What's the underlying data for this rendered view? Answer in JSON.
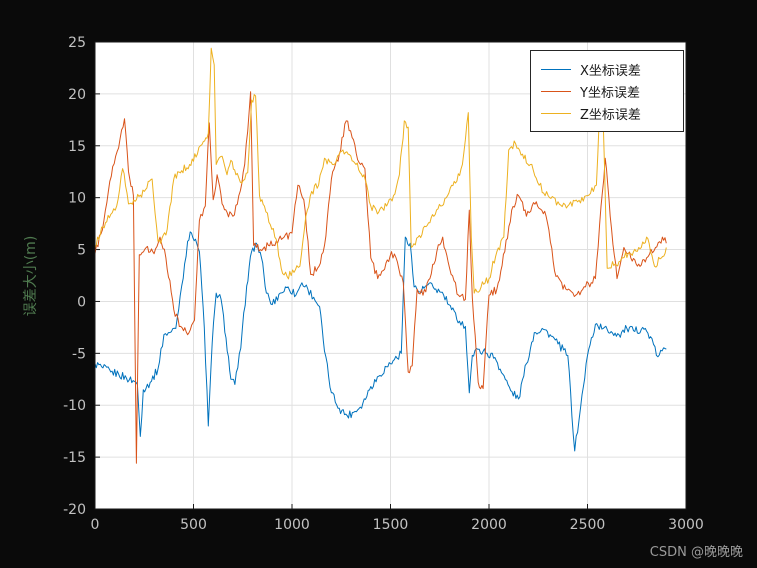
{
  "watermark": "CSDN @晚晚晚",
  "colors": {
    "figure_bg": "#0a0a0a",
    "plot_bg": "#ffffff",
    "grid": "#e0e0e0",
    "axis": "#1a1a1a",
    "tick_label": "#c2c2c2",
    "ylabel": "#4f7a4f",
    "watermark": "#9a9a9a"
  },
  "chart_data": {
    "type": "line",
    "title": "",
    "xlabel": "",
    "ylabel": "误差大小(m)",
    "xlim": [
      0,
      3000
    ],
    "ylim": [
      -20,
      25
    ],
    "xticks": [
      0,
      500,
      1000,
      1500,
      2000,
      2500,
      3000
    ],
    "yticks": [
      -20,
      -15,
      -10,
      -5,
      0,
      5,
      10,
      15,
      20,
      25
    ],
    "grid": true,
    "legend_position": "top-right",
    "noise_amplitude": 0.4,
    "series": [
      {
        "name": "X坐标误差",
        "color": "#0072BD",
        "points": [
          [
            0,
            -6
          ],
          [
            40,
            -6.4
          ],
          [
            80,
            -6.8
          ],
          [
            120,
            -7
          ],
          [
            160,
            -7.4
          ],
          [
            200,
            -7.7
          ],
          [
            215,
            -8
          ],
          [
            230,
            -13
          ],
          [
            245,
            -8.5
          ],
          [
            280,
            -7.8
          ],
          [
            320,
            -6.5
          ],
          [
            350,
            -3.2
          ],
          [
            380,
            -3
          ],
          [
            410,
            -2.6
          ],
          [
            440,
            1.5
          ],
          [
            470,
            5.8
          ],
          [
            490,
            6.6
          ],
          [
            510,
            6
          ],
          [
            530,
            4.8
          ],
          [
            555,
            -2.5
          ],
          [
            575,
            -12
          ],
          [
            595,
            -4
          ],
          [
            615,
            0.8
          ],
          [
            640,
            0.2
          ],
          [
            665,
            -3.5
          ],
          [
            690,
            -7.5
          ],
          [
            710,
            -8
          ],
          [
            740,
            -4.5
          ],
          [
            770,
            1.5
          ],
          [
            795,
            4.8
          ],
          [
            820,
            5.6
          ],
          [
            845,
            4.2
          ],
          [
            870,
            0.8
          ],
          [
            900,
            -0.3
          ],
          [
            940,
            0.8
          ],
          [
            980,
            1.4
          ],
          [
            1020,
            0.6
          ],
          [
            1050,
            1.8
          ],
          [
            1080,
            1.2
          ],
          [
            1110,
            0.4
          ],
          [
            1140,
            -0.5
          ],
          [
            1165,
            -4.8
          ],
          [
            1200,
            -8.8
          ],
          [
            1240,
            -10.3
          ],
          [
            1280,
            -11
          ],
          [
            1320,
            -10.6
          ],
          [
            1360,
            -9.8
          ],
          [
            1400,
            -8.2
          ],
          [
            1440,
            -7.2
          ],
          [
            1480,
            -6.3
          ],
          [
            1520,
            -5.6
          ],
          [
            1555,
            -5
          ],
          [
            1575,
            6.2
          ],
          [
            1600,
            5.6
          ],
          [
            1620,
            1.4
          ],
          [
            1650,
            0.9
          ],
          [
            1690,
            1.6
          ],
          [
            1730,
            1.2
          ],
          [
            1770,
            0.6
          ],
          [
            1810,
            -0.8
          ],
          [
            1850,
            -1.9
          ],
          [
            1880,
            -2.4
          ],
          [
            1900,
            -8.8
          ],
          [
            1915,
            -5.2
          ],
          [
            1950,
            -4.6
          ],
          [
            1990,
            -5
          ],
          [
            2030,
            -5.4
          ],
          [
            2070,
            -7
          ],
          [
            2110,
            -8.6
          ],
          [
            2150,
            -9.4
          ],
          [
            2190,
            -6
          ],
          [
            2230,
            -3
          ],
          [
            2270,
            -2.6
          ],
          [
            2310,
            -3.2
          ],
          [
            2350,
            -4.1
          ],
          [
            2400,
            -5.2
          ],
          [
            2435,
            -14.4
          ],
          [
            2465,
            -10.2
          ],
          [
            2500,
            -5.2
          ],
          [
            2540,
            -2.2
          ],
          [
            2580,
            -2.6
          ],
          [
            2620,
            -2.9
          ],
          [
            2660,
            -3.2
          ],
          [
            2700,
            -2.6
          ],
          [
            2740,
            -2.9
          ],
          [
            2780,
            -2.5
          ],
          [
            2820,
            -3.4
          ],
          [
            2850,
            -5.2
          ],
          [
            2900,
            -4.6
          ]
        ]
      },
      {
        "name": "Y坐标误差",
        "color": "#D95319",
        "points": [
          [
            0,
            4.6
          ],
          [
            30,
            6.5
          ],
          [
            60,
            9.5
          ],
          [
            90,
            13
          ],
          [
            120,
            14.8
          ],
          [
            150,
            17.6
          ],
          [
            170,
            12.5
          ],
          [
            195,
            10.2
          ],
          [
            210,
            -15.6
          ],
          [
            225,
            4.5
          ],
          [
            260,
            5.2
          ],
          [
            300,
            4.6
          ],
          [
            330,
            6.2
          ],
          [
            360,
            4.2
          ],
          [
            400,
            -0.8
          ],
          [
            435,
            -2.4
          ],
          [
            470,
            -3.2
          ],
          [
            505,
            -1.8
          ],
          [
            530,
            7.8
          ],
          [
            560,
            9.2
          ],
          [
            580,
            17.2
          ],
          [
            600,
            9.8
          ],
          [
            620,
            12.2
          ],
          [
            645,
            9.4
          ],
          [
            670,
            8.6
          ],
          [
            700,
            8.2
          ],
          [
            730,
            10.2
          ],
          [
            760,
            13.2
          ],
          [
            790,
            20.2
          ],
          [
            805,
            5.4
          ],
          [
            840,
            5
          ],
          [
            880,
            5.4
          ],
          [
            920,
            5.8
          ],
          [
            960,
            6.2
          ],
          [
            1000,
            6.6
          ],
          [
            1030,
            11.2
          ],
          [
            1060,
            9.8
          ],
          [
            1095,
            2.6
          ],
          [
            1130,
            3.2
          ],
          [
            1165,
            5.4
          ],
          [
            1200,
            11.8
          ],
          [
            1240,
            14.2
          ],
          [
            1275,
            17.4
          ],
          [
            1305,
            15.8
          ],
          [
            1340,
            13.4
          ],
          [
            1370,
            12.8
          ],
          [
            1400,
            4.2
          ],
          [
            1435,
            2.2
          ],
          [
            1470,
            3.1
          ],
          [
            1505,
            4.8
          ],
          [
            1535,
            3.8
          ],
          [
            1565,
            1.8
          ],
          [
            1590,
            -6.8
          ],
          [
            1610,
            -6.2
          ],
          [
            1635,
            1.2
          ],
          [
            1665,
            0.6
          ],
          [
            1700,
            2.2
          ],
          [
            1735,
            4.8
          ],
          [
            1765,
            6.2
          ],
          [
            1800,
            3.2
          ],
          [
            1845,
            0.6
          ],
          [
            1880,
            0.2
          ],
          [
            1900,
            8.8
          ],
          [
            1915,
            0.4
          ],
          [
            1945,
            -7.8
          ],
          [
            1970,
            -8.4
          ],
          [
            2000,
            0.6
          ],
          [
            2040,
            1.2
          ],
          [
            2080,
            4.8
          ],
          [
            2115,
            8.8
          ],
          [
            2150,
            10.2
          ],
          [
            2190,
            8.2
          ],
          [
            2240,
            9.6
          ],
          [
            2290,
            8.2
          ],
          [
            2340,
            2.4
          ],
          [
            2390,
            1.2
          ],
          [
            2440,
            0.6
          ],
          [
            2490,
            1.4
          ],
          [
            2540,
            2.2
          ],
          [
            2590,
            13.8
          ],
          [
            2615,
            8.2
          ],
          [
            2650,
            2.2
          ],
          [
            2685,
            5.2
          ],
          [
            2720,
            4.2
          ],
          [
            2760,
            3.6
          ],
          [
            2800,
            4.2
          ],
          [
            2845,
            5.2
          ],
          [
            2880,
            6.2
          ],
          [
            2900,
            5.6
          ]
        ]
      },
      {
        "name": "Z坐标误差",
        "color": "#EDB120",
        "points": [
          [
            0,
            5.2
          ],
          [
            40,
            7.2
          ],
          [
            80,
            8.4
          ],
          [
            110,
            9.2
          ],
          [
            140,
            12.8
          ],
          [
            170,
            9.4
          ],
          [
            210,
            9.8
          ],
          [
            250,
            10.6
          ],
          [
            290,
            11.8
          ],
          [
            320,
            5.8
          ],
          [
            360,
            6.4
          ],
          [
            400,
            11.8
          ],
          [
            440,
            12.6
          ],
          [
            480,
            13.2
          ],
          [
            520,
            14.2
          ],
          [
            550,
            15.4
          ],
          [
            575,
            16.2
          ],
          [
            590,
            24.4
          ],
          [
            605,
            22.8
          ],
          [
            615,
            13.2
          ],
          [
            645,
            14
          ],
          [
            670,
            12.2
          ],
          [
            690,
            13.6
          ],
          [
            715,
            12.2
          ],
          [
            745,
            11.4
          ],
          [
            775,
            12.4
          ],
          [
            795,
            19.4
          ],
          [
            815,
            19.8
          ],
          [
            835,
            10.2
          ],
          [
            860,
            9.2
          ],
          [
            890,
            7.4
          ],
          [
            920,
            6
          ],
          [
            945,
            3.2
          ],
          [
            975,
            2.4
          ],
          [
            1010,
            2.8
          ],
          [
            1040,
            3.4
          ],
          [
            1070,
            8.2
          ],
          [
            1100,
            10.6
          ],
          [
            1135,
            11.2
          ],
          [
            1165,
            13.8
          ],
          [
            1205,
            13.2
          ],
          [
            1245,
            14.4
          ],
          [
            1285,
            14.2
          ],
          [
            1325,
            13.2
          ],
          [
            1365,
            12.2
          ],
          [
            1400,
            9.2
          ],
          [
            1440,
            8.6
          ],
          [
            1480,
            9.2
          ],
          [
            1515,
            10.2
          ],
          [
            1545,
            12.2
          ],
          [
            1570,
            17.4
          ],
          [
            1590,
            16.8
          ],
          [
            1605,
            5.2
          ],
          [
            1640,
            6.2
          ],
          [
            1680,
            7.2
          ],
          [
            1720,
            8.2
          ],
          [
            1755,
            9.2
          ],
          [
            1790,
            10.2
          ],
          [
            1830,
            11.4
          ],
          [
            1865,
            13.2
          ],
          [
            1895,
            18.2
          ],
          [
            1910,
            6.2
          ],
          [
            1925,
            0.8
          ],
          [
            1960,
            1.4
          ],
          [
            2000,
            2.2
          ],
          [
            2040,
            4.8
          ],
          [
            2075,
            6.2
          ],
          [
            2100,
            14.6
          ],
          [
            2135,
            15.2
          ],
          [
            2170,
            14.2
          ],
          [
            2210,
            13.2
          ],
          [
            2255,
            11.2
          ],
          [
            2300,
            10.2
          ],
          [
            2350,
            9.6
          ],
          [
            2400,
            9.2
          ],
          [
            2450,
            9.6
          ],
          [
            2500,
            10.2
          ],
          [
            2545,
            11.2
          ],
          [
            2560,
            17.8
          ],
          [
            2580,
            17
          ],
          [
            2600,
            3.2
          ],
          [
            2640,
            3.6
          ],
          [
            2680,
            4.2
          ],
          [
            2720,
            4.6
          ],
          [
            2760,
            5.2
          ],
          [
            2800,
            6.2
          ],
          [
            2840,
            3.4
          ],
          [
            2875,
            4.2
          ],
          [
            2900,
            5.2
          ]
        ]
      }
    ]
  }
}
